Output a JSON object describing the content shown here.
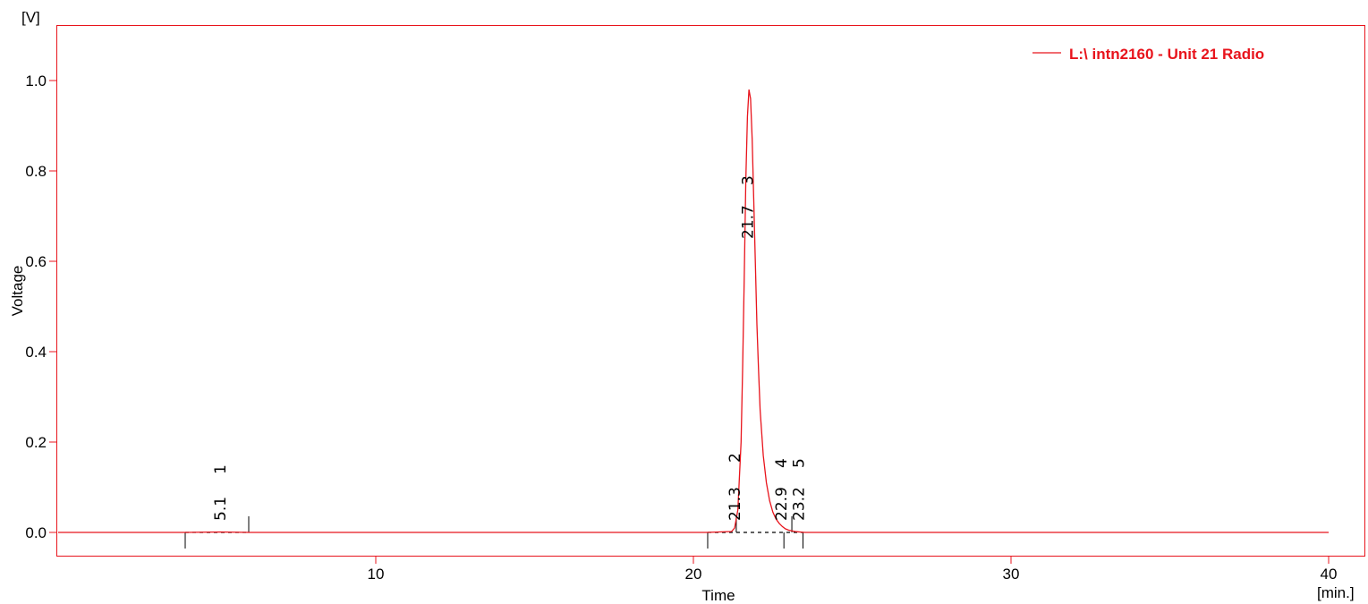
{
  "chart_data": {
    "type": "line",
    "y_unit": "[V]",
    "x_unit": "[min.]",
    "xlabel": "Time",
    "ylabel": "Voltage",
    "xlim": [
      0,
      41
    ],
    "ylim": [
      -0.055,
      1.12
    ],
    "x_ticks": [
      10,
      20,
      30,
      40
    ],
    "x_tick_labels": [
      "10",
      "20",
      "30",
      "40"
    ],
    "y_ticks": [
      0.0,
      0.2,
      0.4,
      0.6,
      0.8,
      1.0
    ],
    "y_tick_labels": [
      "0.0",
      "0.2",
      "0.4",
      "0.6",
      "0.8",
      "1.0"
    ],
    "grid": false,
    "legend_position": "top-right",
    "series": [
      {
        "name": "L:\\ intn2160 - Unit 21 Radio",
        "color": "#e8141c",
        "x": [
          0,
          4.0,
          5.1,
          6.0,
          10,
          15,
          20.4,
          21.2,
          21.3,
          21.4,
          21.5,
          21.55,
          21.6,
          21.65,
          21.7,
          21.75,
          21.8,
          21.85,
          21.9,
          21.95,
          22.0,
          22.05,
          22.1,
          22.2,
          22.3,
          22.4,
          22.5,
          22.6,
          22.7,
          22.8,
          22.9,
          23.0,
          23.2,
          23.5,
          25,
          30,
          35,
          40
        ],
        "y": [
          0.0,
          0.0,
          0.001,
          0.0,
          0.0,
          0.0,
          0.0,
          0.002,
          0.01,
          0.05,
          0.2,
          0.36,
          0.56,
          0.78,
          0.92,
          0.98,
          0.96,
          0.87,
          0.74,
          0.6,
          0.46,
          0.36,
          0.27,
          0.17,
          0.11,
          0.07,
          0.045,
          0.03,
          0.02,
          0.013,
          0.008,
          0.005,
          0.002,
          0.0,
          0.0,
          0.0,
          0.0,
          0.0
        ]
      }
    ],
    "peaks": [
      {
        "id": "1",
        "rt": "5.1",
        "x": 5.1
      },
      {
        "id": "2",
        "rt": "21.3",
        "x": 21.3
      },
      {
        "id": "3",
        "rt": "21.7",
        "x": 21.7
      },
      {
        "id": "4",
        "rt": "22.9",
        "x": 22.9
      },
      {
        "id": "5",
        "rt": "23.2",
        "x": 23.2
      }
    ],
    "baseline_markers": [
      4.0,
      6.0,
      20.45,
      21.35,
      22.85,
      23.1,
      23.45
    ],
    "baselines": [
      [
        4.0,
        6.0
      ],
      [
        20.45,
        23.45
      ]
    ]
  }
}
